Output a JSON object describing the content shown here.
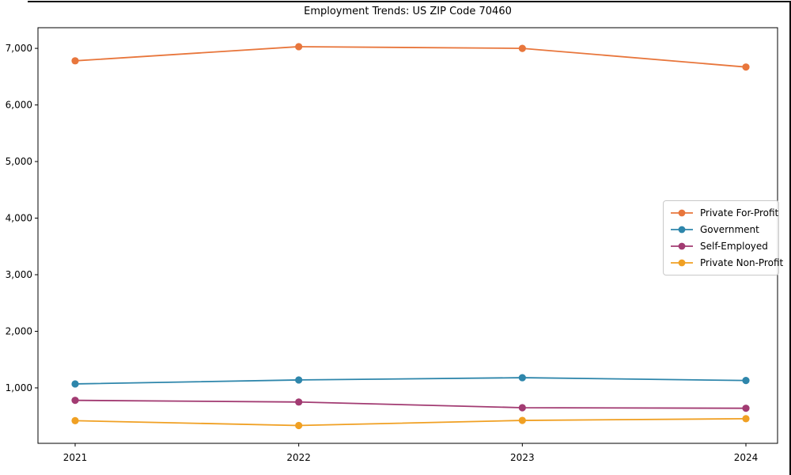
{
  "figure": {
    "background": "#ffffff",
    "edge_color": "#111111"
  },
  "chart_data": {
    "type": "line",
    "title": "Employment Trends: US ZIP Code 70460",
    "xlabel": "",
    "ylabel": "",
    "x": [
      "2021",
      "2022",
      "2023",
      "2024"
    ],
    "series": [
      {
        "name": "Private For-Profit",
        "color": "#e8763c",
        "values": [
          6780,
          7030,
          7000,
          6670
        ]
      },
      {
        "name": "Government",
        "color": "#2e86ab",
        "values": [
          1070,
          1140,
          1180,
          1130
        ]
      },
      {
        "name": "Self-Employed",
        "color": "#a23b72",
        "values": [
          780,
          750,
          650,
          640
        ]
      },
      {
        "name": "Private Non-Profit",
        "color": "#f0a023",
        "values": [
          420,
          335,
          425,
          455
        ]
      }
    ],
    "ylim": [
      20,
      7365
    ],
    "yticks": [
      {
        "value": 1000,
        "label": "1,000"
      },
      {
        "value": 2000,
        "label": "2,000"
      },
      {
        "value": 3000,
        "label": "3,000"
      },
      {
        "value": 4000,
        "label": "4,000"
      },
      {
        "value": 5000,
        "label": "5,000"
      },
      {
        "value": 6000,
        "label": "6,000"
      },
      {
        "value": 7000,
        "label": "7,000"
      }
    ],
    "grid": false,
    "marker": "circle",
    "legend_position": "center-right",
    "axis_color": "#000000",
    "tick_label_color": "#000000"
  }
}
